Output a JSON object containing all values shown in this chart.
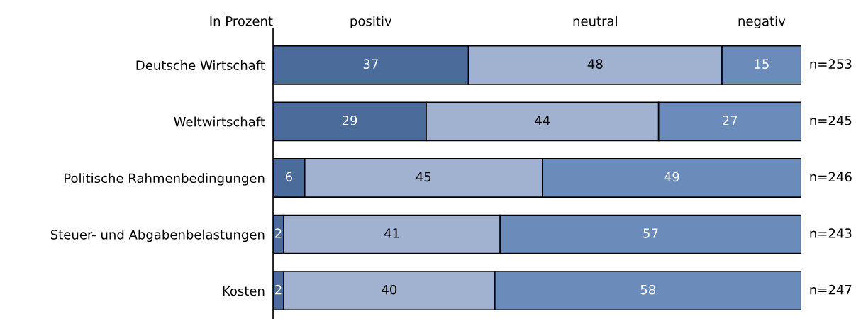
{
  "chart_data": {
    "type": "bar",
    "orientation": "horizontal",
    "stacked": true,
    "data_labels": true,
    "legend": false,
    "grid": false,
    "tick_labels": "y",
    "xlim": [
      0,
      100
    ],
    "categories": [
      "Deutsche Wirtschaft",
      "Weltwirtschaft",
      "Politische Rahmenbedingungen",
      "Steuer- und Abgabenbelastungen",
      "Kosten"
    ],
    "series": [
      {
        "name": "positiv",
        "color": "#4b6b9a",
        "values": [
          37,
          29,
          6,
          2,
          2
        ]
      },
      {
        "name": "neutral",
        "color": "#a0b2cf",
        "values": [
          48,
          44,
          45,
          41,
          40
        ]
      },
      {
        "name": "negativ",
        "color": "#6b8cba",
        "values": [
          15,
          27,
          49,
          57,
          58
        ]
      }
    ],
    "ylabel": "In Prozent",
    "annotations": [
      "n=253",
      "n=245",
      "n=246",
      "n=243",
      "n=247"
    ]
  }
}
